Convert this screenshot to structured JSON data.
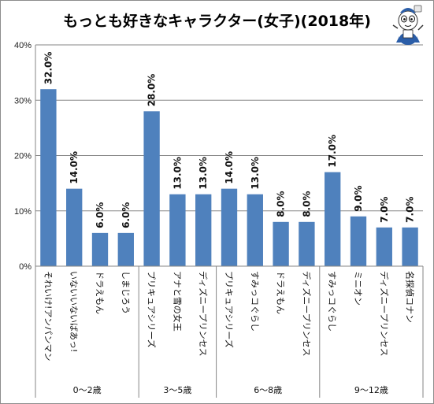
{
  "chart_data": {
    "type": "bar",
    "title": "もっとも好きなキャラクター(女子)(2018年)",
    "categories": [
      "それいけ!アンパンマン",
      "いないいないばあっ!",
      "ドラえもん",
      "しまじろう",
      "プリキュアシリーズ",
      "アナと雪の女王",
      "ディズニープリンセス",
      "プリキュアシリーズ",
      "すみっコぐらし",
      "ドラえもん",
      "ディズニープリンセス",
      "すみっコぐらし",
      "ミニオン",
      "ディズニープリンセス",
      "名探偵コナン"
    ],
    "values": [
      32.0,
      14.0,
      6.0,
      6.0,
      28.0,
      13.0,
      13.0,
      14.0,
      13.0,
      8.0,
      8.0,
      17.0,
      9.0,
      7.0,
      7.0
    ],
    "value_labels": [
      "32.0%",
      "14.0%",
      "6.0%",
      "6.0%",
      "28.0%",
      "13.0%",
      "13.0%",
      "14.0%",
      "13.0%",
      "8.0%",
      "8.0%",
      "17.0%",
      "9.0%",
      "7.0%",
      "7.0%"
    ],
    "groups": [
      {
        "label": "0〜2歳",
        "count": 4
      },
      {
        "label": "3〜5歳",
        "count": 3
      },
      {
        "label": "6〜8歳",
        "count": 4
      },
      {
        "label": "9〜12歳",
        "count": 4
      }
    ],
    "ylim": [
      0,
      40
    ],
    "yticks": [
      0,
      10,
      20,
      30,
      40
    ],
    "ytick_labels": [
      "0%",
      "10%",
      "20%",
      "30%",
      "40%"
    ],
    "xlabel": "",
    "ylabel": "",
    "grid": true,
    "legend": "none",
    "bar_color": "#4f81bd",
    "gridline_color": "#868686"
  },
  "mascot": {
    "icon": "mascot-character-icon"
  }
}
